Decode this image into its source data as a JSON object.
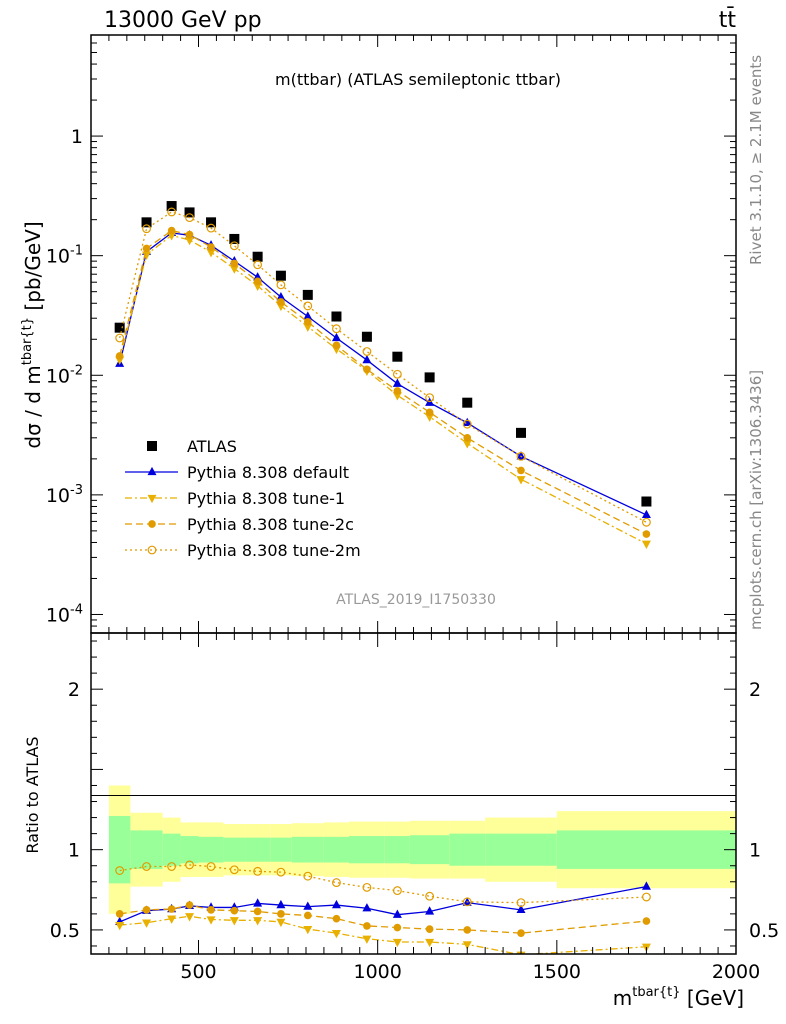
{
  "header": {
    "energy_label": "13000 GeV pp",
    "process_label": "tt̄"
  },
  "side_labels": {
    "rivet": "Rivet 3.1.10, ≥ 2.1M events",
    "mcplots": "mcplots.cern.ch [arXiv:1306.3436]"
  },
  "chart_data": [
    {
      "type": "scatter",
      "panel": "main",
      "title": "m(ttbar) (ATLAS semileptonic ttbar)",
      "watermark": "ATLAS_2019_I1750330",
      "ylabel": "dσ / d m^{tbar{t}} [pb/GeV]",
      "yscale": "log",
      "xlim": [
        200,
        2000
      ],
      "ylim": [
        7e-05,
        7
      ],
      "y_ticks": [
        "10^{-4}",
        "10^{-3}",
        "10^{-2}",
        "10^{-1}",
        "1"
      ],
      "x": [
        280,
        355,
        425,
        475,
        535,
        600,
        665,
        730,
        805,
        885,
        970,
        1055,
        1145,
        1250,
        1400,
        1750
      ],
      "legend": {
        "position": "bottom-left"
      },
      "series": [
        {
          "name": "ATLAS",
          "color": "#000000",
          "marker": "square",
          "line": "none",
          "values": [
            0.025,
            0.19,
            0.26,
            0.23,
            0.19,
            0.138,
            0.098,
            0.068,
            0.047,
            0.031,
            0.021,
            0.0143,
            0.0096,
            0.0059,
            0.0033,
            0.00088
          ]
        },
        {
          "name": "Pythia 8.308 default",
          "color": "#0000dd",
          "marker": "triangle-up",
          "line": "solid",
          "values": [
            0.0125,
            0.108,
            0.155,
            0.148,
            0.122,
            0.09,
            0.066,
            0.045,
            0.031,
            0.0205,
            0.0134,
            0.0085,
            0.0059,
            0.004,
            0.0021,
            0.00068
          ]
        },
        {
          "name": "Pythia 8.308 tune-1",
          "color": "#e8b000",
          "marker": "triangle-down",
          "line": "dashdot",
          "values": [
            0.0135,
            0.102,
            0.148,
            0.135,
            0.107,
            0.078,
            0.056,
            0.038,
            0.0255,
            0.0166,
            0.0109,
            0.0068,
            0.0045,
            0.0027,
            0.00135,
            0.00039
          ]
        },
        {
          "name": "Pythia 8.308 tune-2c",
          "color": "#e09b00",
          "marker": "circle",
          "line": "dashed",
          "values": [
            0.0145,
            0.115,
            0.162,
            0.15,
            0.118,
            0.086,
            0.061,
            0.041,
            0.028,
            0.0178,
            0.0112,
            0.0074,
            0.0049,
            0.003,
            0.0016,
            0.00047
          ]
        },
        {
          "name": "Pythia 8.308 tune-2m",
          "color": "#e09b00",
          "marker": "open-circle",
          "line": "dotted",
          "values": [
            0.0205,
            0.168,
            0.232,
            0.208,
            0.17,
            0.121,
            0.084,
            0.057,
            0.038,
            0.0245,
            0.0158,
            0.0102,
            0.0065,
            0.0039,
            0.0021,
            0.00059
          ]
        }
      ]
    },
    {
      "type": "line",
      "panel": "ratio",
      "ylabel": "Ratio to ATLAS",
      "xlabel": "m^{tbar{t}} [GeV]",
      "xlim": [
        200,
        2000
      ],
      "ylim": [
        0.35,
        2.35
      ],
      "x_ticks": [
        500,
        1000,
        1500,
        2000
      ],
      "y_ticks": [
        0.5,
        1,
        2
      ],
      "bins": [
        250,
        310,
        400,
        450,
        500,
        570,
        630,
        700,
        760,
        850,
        920,
        1020,
        1090,
        1200,
        1300,
        1500,
        2000
      ],
      "band_inner": [
        0.21,
        0.12,
        0.1,
        0.085,
        0.08,
        0.075,
        0.075,
        0.075,
        0.08,
        0.08,
        0.085,
        0.085,
        0.09,
        0.1,
        0.1,
        0.12
      ],
      "band_outer": [
        0.4,
        0.23,
        0.2,
        0.17,
        0.17,
        0.16,
        0.16,
        0.16,
        0.165,
        0.17,
        0.175,
        0.175,
        0.18,
        0.18,
        0.2,
        0.24
      ],
      "x": [
        280,
        355,
        425,
        475,
        535,
        600,
        665,
        730,
        805,
        885,
        970,
        1055,
        1145,
        1250,
        1400,
        1750
      ],
      "series": [
        {
          "name": "Pythia 8.308 default",
          "color": "#0000dd",
          "marker": "triangle-up",
          "line": "solid",
          "values": [
            0.55,
            0.62,
            0.63,
            0.65,
            0.64,
            0.64,
            0.665,
            0.655,
            0.645,
            0.655,
            0.635,
            0.595,
            0.615,
            0.67,
            0.625,
            0.77
          ]
        },
        {
          "name": "Pythia 8.308 tune-1",
          "color": "#e8b000",
          "marker": "triangle-down",
          "line": "dashdot",
          "values": [
            0.53,
            0.545,
            0.57,
            0.585,
            0.565,
            0.56,
            0.56,
            0.55,
            0.505,
            0.48,
            0.445,
            0.425,
            0.425,
            0.41,
            0.345,
            0.395
          ]
        },
        {
          "name": "Pythia 8.308 tune-2c",
          "color": "#e09b00",
          "marker": "circle",
          "line": "dashed",
          "values": [
            0.6,
            0.625,
            0.63,
            0.655,
            0.625,
            0.62,
            0.615,
            0.6,
            0.59,
            0.57,
            0.525,
            0.515,
            0.505,
            0.5,
            0.48,
            0.555
          ]
        },
        {
          "name": "Pythia 8.308 tune-2m",
          "color": "#e09b00",
          "marker": "open-circle",
          "line": "dotted",
          "values": [
            0.87,
            0.895,
            0.895,
            0.905,
            0.895,
            0.875,
            0.865,
            0.86,
            0.835,
            0.795,
            0.765,
            0.745,
            0.71,
            0.675,
            0.67,
            0.705
          ]
        }
      ]
    }
  ]
}
